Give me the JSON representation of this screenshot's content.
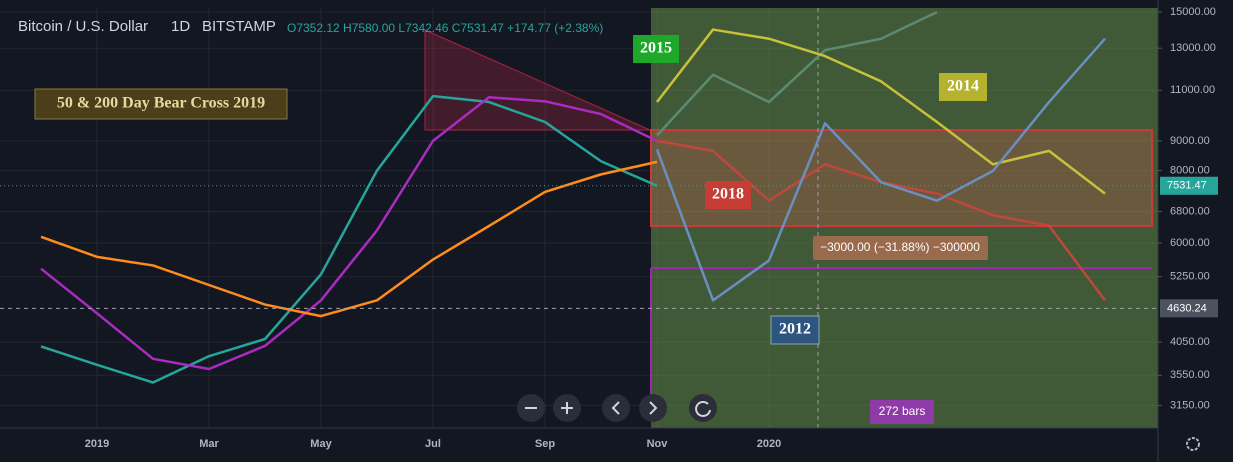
{
  "header": {
    "symbol": "Bitcoin / U.S. Dollar",
    "interval": "1D",
    "exchange": "BITSTAMP",
    "ohlc": "O7352.12 H7580.00 L7342.46 C7531.47 +174.77 (+2.38%)"
  },
  "annotations": [
    "2015",
    "2014",
    "2018",
    "2012",
    "50 & 200 Day Bear Cross 2019",
    "−3000.00 (−31.88%) −300000",
    "272 bars"
  ],
  "chart_data": {
    "type": "line",
    "log": true,
    "grid": true,
    "categories": [
      null,
      "2019",
      null,
      "Mar",
      null,
      "May",
      null,
      "Jul",
      null,
      "Sep",
      null,
      "Nov",
      null,
      "2020",
      null,
      null,
      null,
      null,
      null,
      null
    ],
    "ylim": [
      2880,
      15250
    ],
    "yticks": [
      {
        "value": 15000,
        "label": "15000.00"
      },
      {
        "value": 13000,
        "label": "13000.00"
      },
      {
        "value": 11000,
        "label": "11000.00"
      },
      {
        "value": 9000,
        "label": "9000.00"
      },
      {
        "value": 8000,
        "label": "8000.00"
      },
      {
        "value": 6800,
        "label": "6800.00"
      },
      {
        "value": 6000,
        "label": "6000.00"
      },
      {
        "value": 5250,
        "label": "5250.00"
      },
      {
        "value": 4050,
        "label": "4050.00"
      },
      {
        "value": 3550,
        "label": "3550.00"
      },
      {
        "value": 3150,
        "label": "3150.00"
      }
    ],
    "last_price": 7531.47,
    "crosshair_price": 4630.24,
    "series": [
      {
        "color": "#5d8a72",
        "values": [
          null,
          null,
          null,
          null,
          null,
          null,
          null,
          null,
          null,
          null,
          null,
          9200,
          11700,
          10500,
          12900,
          13500,
          15000,
          null,
          null,
          null
        ]
      },
      {
        "color": "#c8c13c",
        "values": [
          null,
          null,
          null,
          null,
          null,
          null,
          null,
          null,
          null,
          null,
          null,
          10500,
          14000,
          13500,
          12600,
          11400,
          9700,
          8200,
          8650,
          7300
        ]
      },
      {
        "color": "#c0473c",
        "values": [
          null,
          null,
          null,
          null,
          null,
          null,
          null,
          null,
          null,
          null,
          null,
          9000,
          8650,
          7100,
          8200,
          7640,
          7300,
          6700,
          6430,
          4780
        ]
      },
      {
        "color": "#6a8fc0",
        "values": [
          null,
          null,
          null,
          null,
          null,
          null,
          null,
          null,
          null,
          null,
          null,
          8700,
          4780,
          5600,
          9650,
          7640,
          7100,
          7990,
          10500,
          13500
        ]
      },
      {
        "color": "#26a69a",
        "values": [
          3980,
          3700,
          3450,
          3830,
          4100,
          5300,
          8000,
          10750,
          10500,
          9700,
          8300,
          7531.47,
          null,
          null,
          null,
          null,
          null,
          null,
          null,
          null
        ]
      },
      {
        "color": "#ab2bc0",
        "values": [
          5420,
          4540,
          3790,
          3640,
          3990,
          4780,
          6310,
          9000,
          10700,
          10530,
          10010,
          9000,
          null,
          null,
          null,
          null,
          null,
          null,
          null,
          null
        ]
      },
      {
        "color": "#ff8c1a",
        "values": [
          6150,
          5680,
          5490,
          5080,
          4700,
          4490,
          4780,
          5620,
          6420,
          7350,
          7880,
          8280,
          null,
          null,
          null,
          null,
          null,
          null,
          null,
          null
        ]
      }
    ]
  }
}
